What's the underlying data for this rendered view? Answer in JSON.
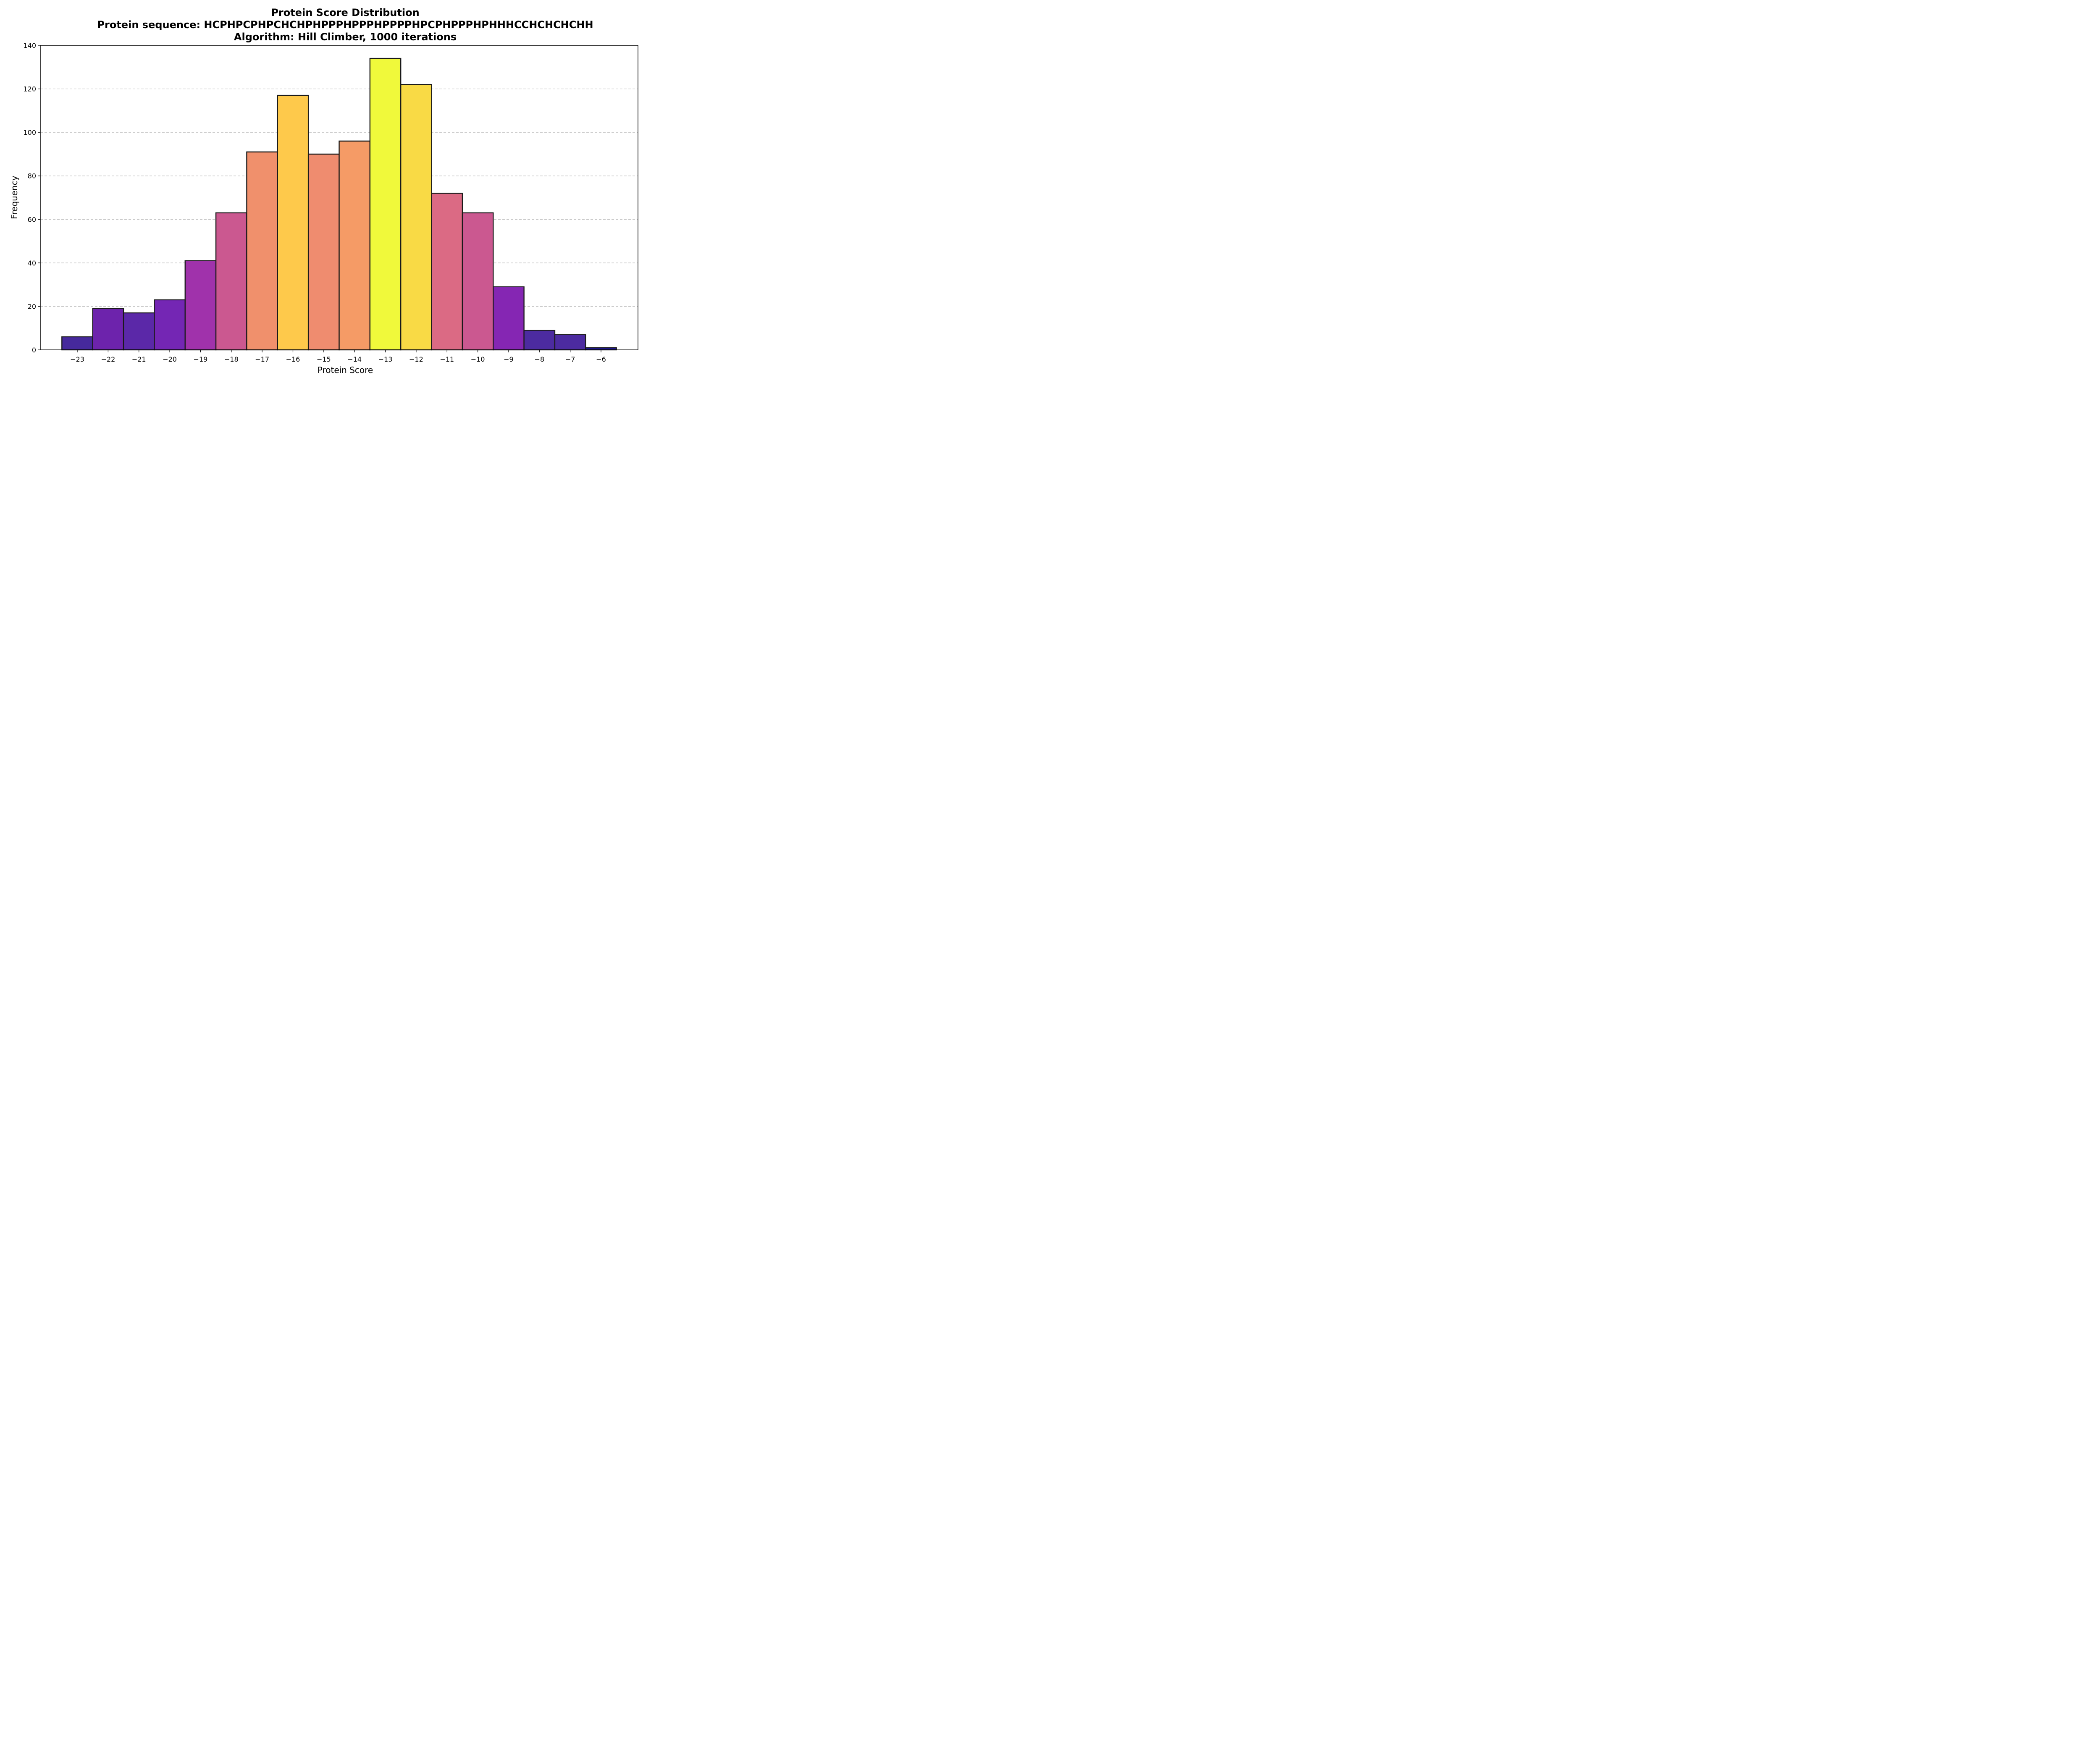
{
  "chart_data": {
    "type": "bar",
    "title": "Protein Score Distribution",
    "subtitle_lines": [
      "Protein sequence: HCPHPCPHPCHCHPHPPPHPPPHPPPPHPCPHPPPHPHHHCCHCHCHCHH",
      "Algorithm: Hill Climber, 1000 iterations"
    ],
    "xlabel": "Protein Score",
    "ylabel": "Frequency",
    "categories": [
      -23,
      -22,
      -21,
      -20,
      -19,
      -18,
      -17,
      -16,
      -15,
      -14,
      -13,
      -12,
      -11,
      -10,
      -9,
      -8,
      -7,
      -6
    ],
    "tick_labels": [
      "−23",
      "−22",
      "−21",
      "−20",
      "−19",
      "−18",
      "−17",
      "−16",
      "−15",
      "−14",
      "−13",
      "−12",
      "−11",
      "−10",
      "−9",
      "−8",
      "−7",
      "−6"
    ],
    "values": [
      6,
      19,
      17,
      23,
      41,
      63,
      91,
      117,
      90,
      96,
      134,
      122,
      72,
      63,
      29,
      9,
      7,
      1
    ],
    "colors": [
      "#46299c",
      "#6d23ac",
      "#5b28a8",
      "#7426b4",
      "#a032ab",
      "#cb5890",
      "#f0906c",
      "#fec94b",
      "#ef8c6f",
      "#f59b66",
      "#f0f93b",
      "#f9da45",
      "#db6a84",
      "#cb5890",
      "#8526b3",
      "#4c2ba0",
      "#4c2ba0",
      "#1f178a"
    ],
    "xlim": [
      -24.2,
      -4.8
    ],
    "ylim": [
      0,
      140
    ],
    "yticks": [
      0,
      20,
      40,
      60,
      80,
      100,
      120,
      140
    ],
    "grid": "y-dashed",
    "legend": "none"
  }
}
